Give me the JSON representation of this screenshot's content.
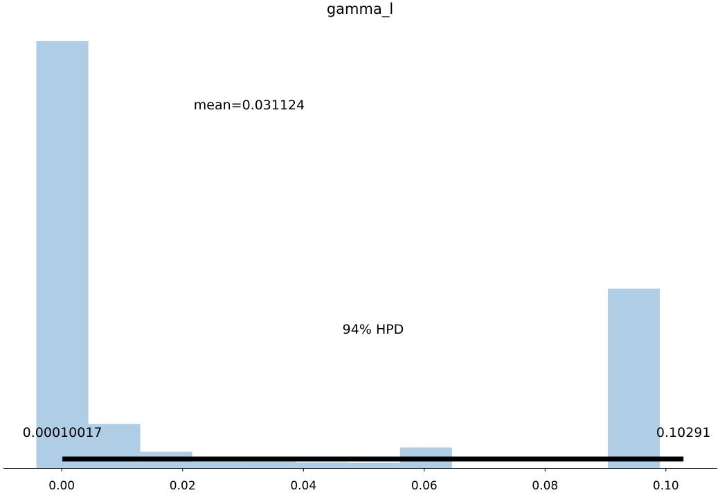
{
  "chart_data": {
    "type": "bar",
    "title": "gamma_l",
    "xlabel": "",
    "ylabel": "",
    "x_ticks": [
      "0.00",
      "0.02",
      "0.04",
      "0.06",
      "0.08",
      "0.10"
    ],
    "x_tick_values": [
      0.0,
      0.02,
      0.04,
      0.06,
      0.08,
      0.1
    ],
    "xlim": [
      -0.00965,
      0.1085
    ],
    "ylim": [
      0,
      1.0
    ],
    "bin_edges": [
      -0.0042,
      0.0044,
      0.013,
      0.0216,
      0.0302,
      0.0388,
      0.0474,
      0.056,
      0.0646,
      0.0732,
      0.0818,
      0.0904,
      0.099
    ],
    "bin_values": [
      1.0,
      0.103,
      0.038,
      0.015,
      0.015,
      0.013,
      0.012,
      0.048,
      0.0,
      0.0,
      0.0,
      0.42
    ],
    "bar_color": "#afcde4",
    "y_axis_shown": false,
    "grid": false,
    "mean_label": "mean=0.031124",
    "hpd": {
      "label": "94% HPD",
      "low": 0.00010017,
      "high": 0.10291,
      "low_label": "0.00010017",
      "high_label": "0.10291",
      "line_color": "#000000"
    }
  }
}
